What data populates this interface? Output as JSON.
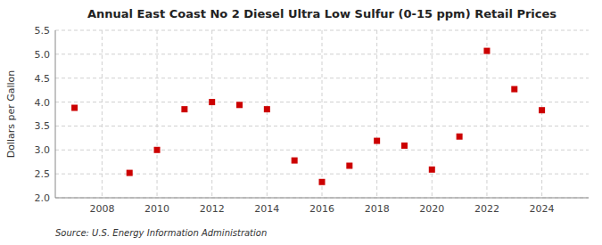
{
  "chart_data": {
    "type": "scatter",
    "title": "Annual East Coast No 2 Diesel Ultra Low Sulfur (0-15 ppm) Retail Prices",
    "ylabel": "Dollars per Gallon",
    "source": "Source: U.S. Energy Information Administration",
    "x": [
      2007,
      2009,
      2010,
      2011,
      2012,
      2013,
      2014,
      2015,
      2016,
      2017,
      2018,
      2019,
      2020,
      2021,
      2022,
      2023,
      2024
    ],
    "values": [
      3.88,
      2.52,
      3.0,
      3.85,
      4.0,
      3.94,
      3.85,
      2.78,
      2.33,
      2.67,
      3.19,
      3.09,
      2.59,
      3.28,
      5.07,
      4.27,
      3.83
    ],
    "color": "#cc0000",
    "marker": "square",
    "xlim": [
      2006.3,
      2025.7
    ],
    "ylim": [
      2.0,
      5.5
    ],
    "xticks": [
      2008,
      2010,
      2012,
      2014,
      2016,
      2018,
      2020,
      2022,
      2024
    ],
    "yticks": [
      {
        "value": 2.0,
        "label": "2.0"
      },
      2.5,
      {
        "value": 3.0,
        "label": "3.0"
      },
      3.5,
      {
        "value": 4.0,
        "label": "4.0"
      },
      4.5,
      {
        "value": 5.0,
        "label": "5.0"
      },
      5.5
    ],
    "grid": true
  }
}
